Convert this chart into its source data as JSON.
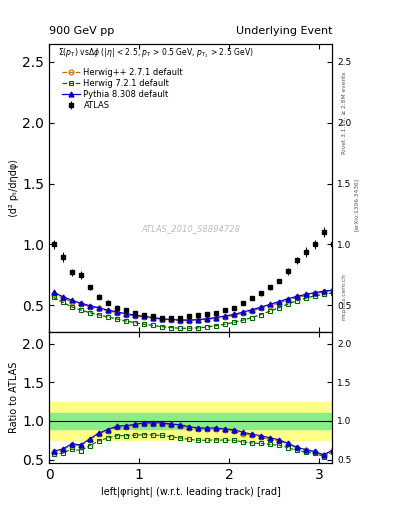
{
  "title_left": "900 GeV pp",
  "title_right": "Underlying Event",
  "annotation": "ATLAS_2010_S8894728",
  "ylabel_main": "⟨d² pₜ/dηdφ⟩",
  "ylabel_ratio": "Ratio to ATLAS",
  "xlabel": "left|φright| (w.r.t. leading track) [rad]",
  "right_label1": "Rivet 3.1.10, ≥ 2.8M events",
  "right_label2": "[arXiv:1306.3436]",
  "right_label3": "mcplots.cern.ch",
  "xlim": [
    0.0,
    3.14159
  ],
  "ylim_main": [
    0.28,
    2.65
  ],
  "ylim_ratio": [
    0.45,
    2.15
  ],
  "yticks_main": [
    0.5,
    1.0,
    1.5,
    2.0,
    2.5
  ],
  "yticks_ratio": [
    0.5,
    1.0,
    1.5,
    2.0
  ],
  "xticks": [
    0,
    1,
    2,
    3
  ],
  "dphi": [
    0.05,
    0.15,
    0.25,
    0.35,
    0.45,
    0.55,
    0.65,
    0.75,
    0.85,
    0.95,
    1.05,
    1.15,
    1.25,
    1.35,
    1.45,
    1.55,
    1.65,
    1.75,
    1.85,
    1.95,
    2.05,
    2.15,
    2.25,
    2.35,
    2.45,
    2.55,
    2.65,
    2.75,
    2.85,
    2.95,
    3.05,
    3.15
  ],
  "atlas_data": [
    1.0,
    0.9,
    0.77,
    0.75,
    0.65,
    0.57,
    0.52,
    0.48,
    0.46,
    0.44,
    0.42,
    0.41,
    0.4,
    0.4,
    0.4,
    0.41,
    0.42,
    0.43,
    0.44,
    0.46,
    0.48,
    0.52,
    0.56,
    0.6,
    0.65,
    0.7,
    0.78,
    0.87,
    0.94,
    1.0,
    1.1,
    1.0
  ],
  "herwig_pp_data": [
    0.595,
    0.56,
    0.53,
    0.51,
    0.49,
    0.475,
    0.455,
    0.44,
    0.425,
    0.415,
    0.405,
    0.395,
    0.385,
    0.38,
    0.375,
    0.375,
    0.378,
    0.385,
    0.395,
    0.405,
    0.418,
    0.435,
    0.455,
    0.475,
    0.498,
    0.52,
    0.545,
    0.565,
    0.582,
    0.598,
    0.612,
    0.625
  ],
  "herwig7_data": [
    0.565,
    0.525,
    0.488,
    0.462,
    0.44,
    0.422,
    0.405,
    0.388,
    0.372,
    0.358,
    0.345,
    0.335,
    0.325,
    0.318,
    0.312,
    0.312,
    0.315,
    0.322,
    0.332,
    0.345,
    0.36,
    0.378,
    0.4,
    0.425,
    0.452,
    0.48,
    0.51,
    0.538,
    0.56,
    0.578,
    0.592,
    0.602
  ],
  "pythia_data": [
    0.608,
    0.572,
    0.542,
    0.518,
    0.498,
    0.48,
    0.462,
    0.447,
    0.432,
    0.42,
    0.41,
    0.4,
    0.39,
    0.384,
    0.38,
    0.38,
    0.382,
    0.39,
    0.4,
    0.412,
    0.426,
    0.444,
    0.464,
    0.485,
    0.508,
    0.53,
    0.554,
    0.574,
    0.59,
    0.604,
    0.616,
    0.625
  ],
  "atlas_err_lo": [
    0.04,
    0.04,
    0.03,
    0.03,
    0.02,
    0.02,
    0.02,
    0.02,
    0.015,
    0.015,
    0.015,
    0.015,
    0.015,
    0.015,
    0.015,
    0.015,
    0.015,
    0.015,
    0.015,
    0.015,
    0.015,
    0.015,
    0.02,
    0.02,
    0.02,
    0.02,
    0.03,
    0.03,
    0.04,
    0.04,
    0.04,
    0.04
  ],
  "atlas_err_hi": [
    0.04,
    0.04,
    0.03,
    0.03,
    0.02,
    0.02,
    0.02,
    0.02,
    0.015,
    0.015,
    0.015,
    0.015,
    0.015,
    0.015,
    0.015,
    0.015,
    0.015,
    0.015,
    0.015,
    0.015,
    0.015,
    0.015,
    0.02,
    0.02,
    0.02,
    0.02,
    0.03,
    0.03,
    0.04,
    0.04,
    0.04,
    0.04
  ],
  "yellow_band_lo": 0.75,
  "yellow_band_hi": 1.25,
  "green_band_lo": 0.9,
  "green_band_hi": 1.1,
  "color_atlas": "#000000",
  "color_herwig_pp": "#cc6600",
  "color_herwig7": "#006600",
  "color_pythia": "#0000cc",
  "color_yellow": "#ffff88",
  "color_green": "#88ee88",
  "legend_labels": [
    "ATLAS",
    "Herwig++ 2.7.1 default",
    "Herwig 7.2.1 default",
    "Pythia 8.308 default"
  ]
}
